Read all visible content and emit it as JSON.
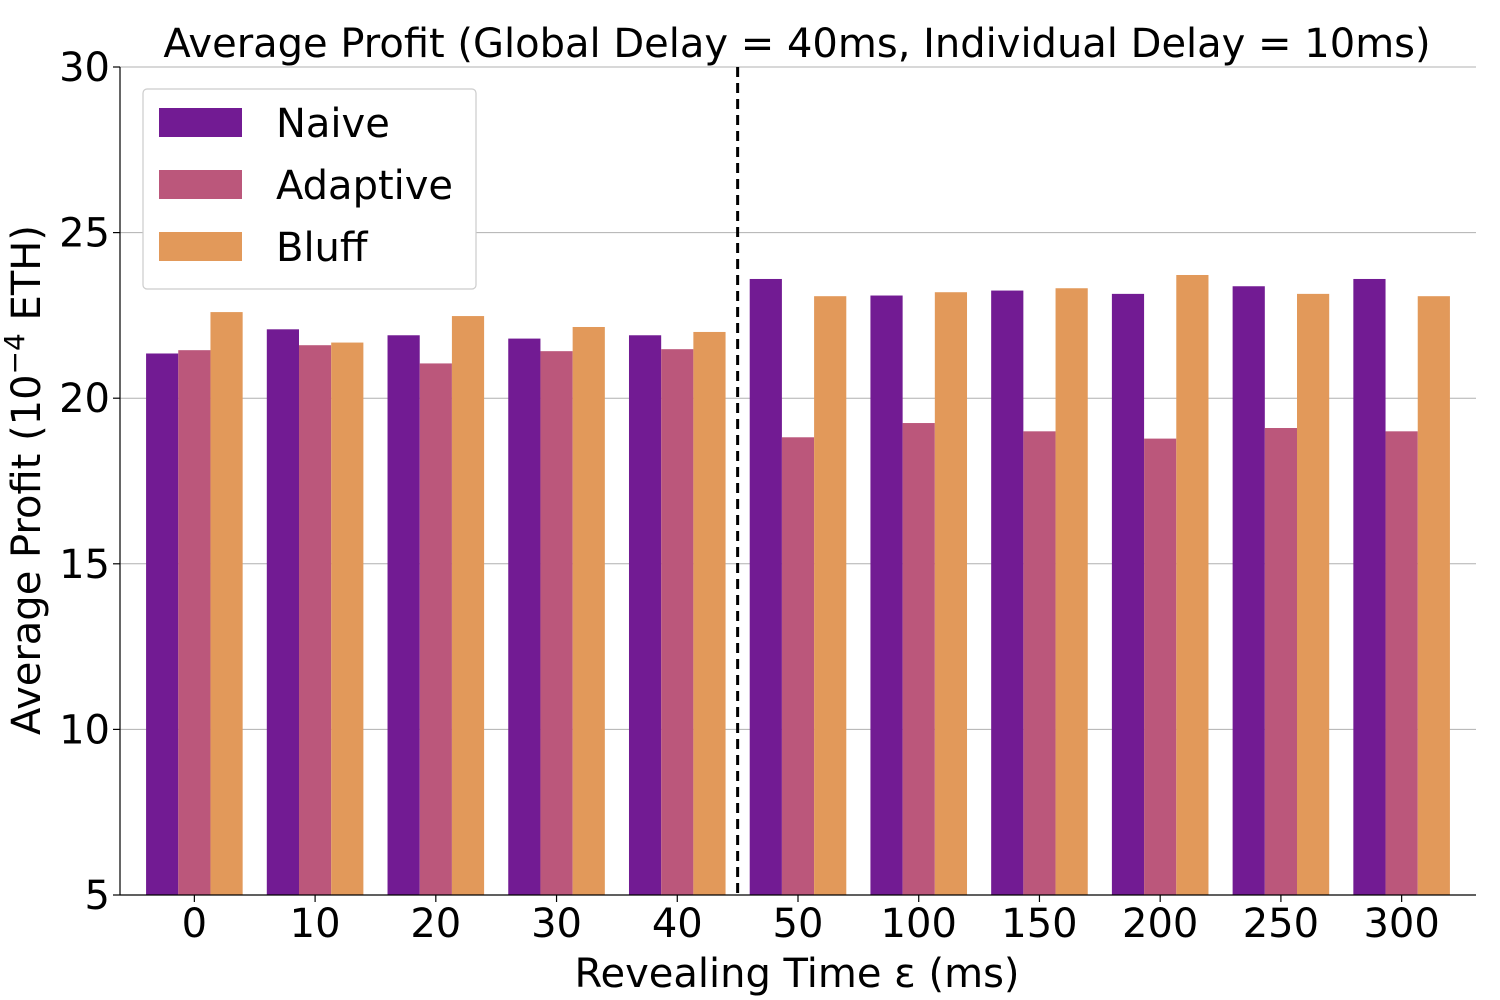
{
  "chart_data": {
    "type": "bar",
    "title": "Average Profit (Global Delay = 40ms, Individual Delay = 10ms)",
    "xlabel": "Revealing Time ε (ms)",
    "ylabel_main": "Average Profit (10",
    "ylabel_sup": "−4",
    "ylabel_tail": " ETH)",
    "categories": [
      "0",
      "10",
      "20",
      "30",
      "40",
      "50",
      "100",
      "150",
      "200",
      "250",
      "300"
    ],
    "series": [
      {
        "name": "Naive",
        "color": "#721b93",
        "values": [
          21.35,
          22.08,
          21.9,
          21.8,
          21.9,
          23.6,
          23.1,
          23.25,
          23.15,
          23.38,
          23.6
        ]
      },
      {
        "name": "Adaptive",
        "color": "#bb577b",
        "values": [
          21.45,
          21.6,
          21.05,
          21.42,
          21.48,
          18.82,
          19.25,
          19.0,
          18.78,
          19.1,
          19.0
        ]
      },
      {
        "name": "Bluff",
        "color": "#e2995a",
        "values": [
          22.6,
          21.68,
          22.48,
          22.15,
          22.0,
          23.08,
          23.2,
          23.32,
          23.72,
          23.15,
          23.08
        ]
      }
    ],
    "ylim": [
      5,
      30
    ],
    "yticks": [
      5,
      10,
      15,
      20,
      25,
      30
    ],
    "grid": "y",
    "legend_position": "top-left",
    "divider_after_category": "40"
  }
}
